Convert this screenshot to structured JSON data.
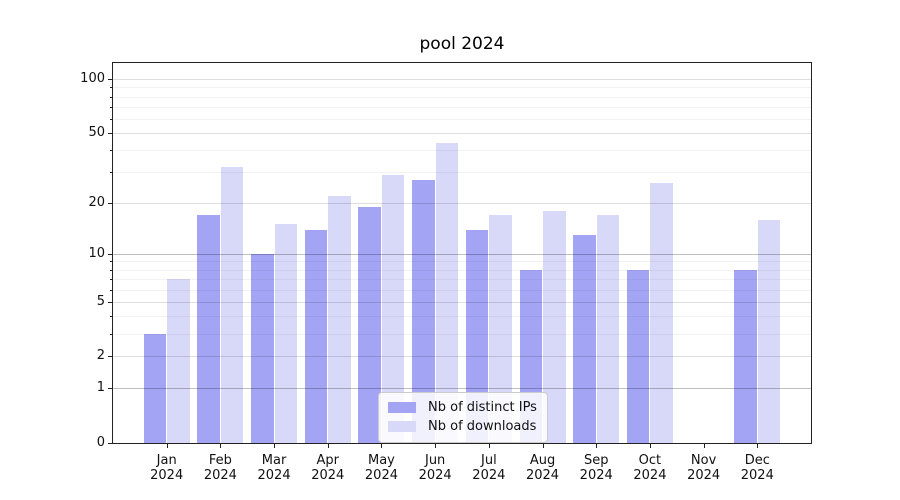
{
  "title": "pool 2024",
  "colors": {
    "bar_distinct_ips": "#a4a4f4",
    "bar_downloads": "#d8d8f8",
    "axis": "#222222",
    "background": "#ffffff"
  },
  "legend": {
    "items": [
      {
        "label": "Nb of distinct IPs",
        "swatch_color": "#a4a4f4"
      },
      {
        "label": "Nb of downloads",
        "swatch_color": "#d8d8f8"
      }
    ]
  },
  "chart_data": {
    "type": "bar",
    "title": "pool 2024",
    "categories": [
      "Jan 2024",
      "Feb 2024",
      "Mar 2024",
      "Apr 2024",
      "May 2024",
      "Jun 2024",
      "Jul 2024",
      "Aug 2024",
      "Sep 2024",
      "Oct 2024",
      "Nov 2024",
      "Dec 2024"
    ],
    "series": [
      {
        "name": "Nb of distinct IPs",
        "color": "#a4a4f4",
        "values": [
          3,
          17,
          10,
          14,
          19,
          27,
          14,
          8,
          13,
          8,
          0,
          8
        ]
      },
      {
        "name": "Nb of downloads",
        "color": "#d8d8f8",
        "values": [
          7,
          32,
          15,
          22,
          29,
          44,
          17,
          18,
          17,
          26,
          0,
          16
        ]
      }
    ],
    "xlabel": "",
    "ylabel": "",
    "yscale": "log1p",
    "ylim": [
      0,
      123
    ],
    "yticks": [
      0,
      1,
      2,
      5,
      10,
      20,
      50,
      100
    ],
    "minor_yticks": [
      3,
      4,
      6,
      7,
      8,
      9,
      30,
      40,
      60,
      70,
      80,
      90
    ],
    "emphasized_gridlines": [
      1,
      10
    ],
    "grid": true,
    "legend_position": "lower center"
  }
}
